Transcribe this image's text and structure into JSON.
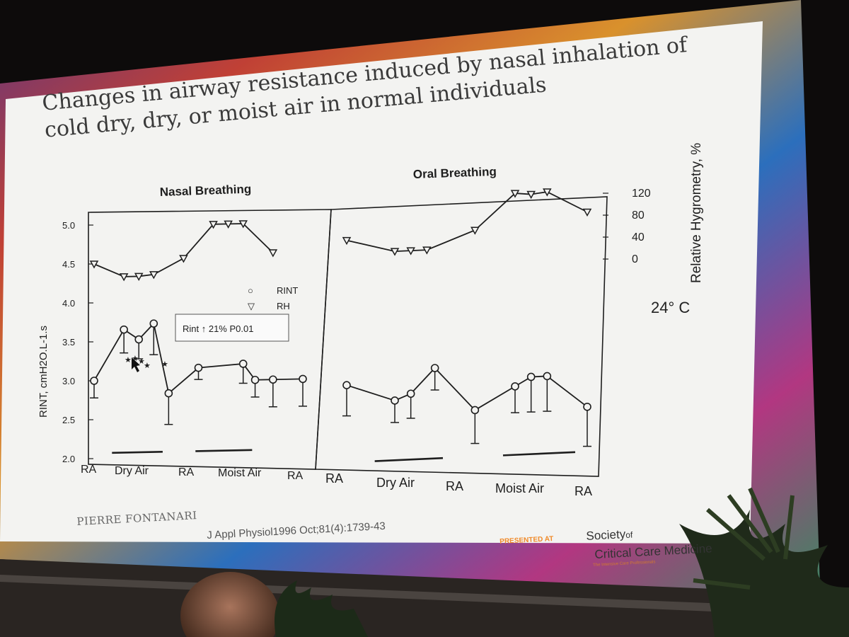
{
  "slide": {
    "title": "Changes in airway resistance induced by nasal inhalation of cold dry, dry, or moist air in normal individuals",
    "author": "PIERRE FONTANARI",
    "citation": "J Appl Physiol1996 Oct;81(4):1739-43",
    "presented_at": "PRESENTED AT",
    "society_line1": "Society",
    "society_of": "of",
    "society_line2": "Critical Care Medicine",
    "society_tagline": "The Intensive Care Professionals",
    "temperature": "24° C",
    "annotation": "Rint ↑ 21% P0.01"
  },
  "colors": {
    "slide_bg": "#f3f3f1",
    "ink": "#1e1e1e",
    "frame_gradient": [
      "#7a2d7a",
      "#e24a3a",
      "#f0a030",
      "#2f7ad0",
      "#c43c8e",
      "#3a9a6a"
    ],
    "accent_orange": "#f08a2a"
  },
  "chart_data": [
    {
      "type": "line",
      "title": "Nasal Breathing",
      "ylabel": "RINT, cmH2O.L-1.s",
      "y2label": "Relative Hygrometry, %",
      "ylim": [
        2.0,
        5.0
      ],
      "yticks": [
        "5.0",
        "4.5",
        "4.0",
        "3.5",
        "3.0",
        "2.5",
        "2.0"
      ],
      "x_labels": [
        "RA",
        "Dry Air",
        "RA",
        "Moist Air",
        "RA"
      ],
      "legend": [
        {
          "symbol": "○",
          "label": "RINT"
        },
        {
          "symbol": "▽",
          "label": "RH"
        }
      ],
      "legend_position": "top-right",
      "series": [
        {
          "name": "RINT",
          "marker": "circle",
          "x": [
            0,
            1,
            1.5,
            2,
            2.5,
            3.5,
            5,
            5.4,
            6,
            7
          ],
          "values": [
            3.0,
            3.65,
            3.52,
            3.72,
            2.82,
            3.14,
            3.18,
            2.97,
            2.97,
            2.97
          ],
          "error_low": [
            0.22,
            0.3,
            0.25,
            0.4,
            0.4,
            0.15,
            0.25,
            0.22,
            0.35,
            0.35
          ]
        },
        {
          "name": "RH",
          "marker": "triangle",
          "x": [
            0,
            1,
            1.5,
            2,
            3,
            4,
            4.5,
            5,
            6
          ],
          "values": [
            4.5,
            4.33,
            4.33,
            4.35,
            4.55,
            4.98,
            4.98,
            4.98,
            4.6
          ]
        }
      ],
      "significance_marks": [
        "★",
        "★",
        "★",
        "★",
        "★"
      ],
      "bars": [
        {
          "from": 0.6,
          "to": 2.3
        },
        {
          "from": 3.4,
          "to": 5.3
        }
      ]
    },
    {
      "type": "line",
      "title": "Oral Breathing",
      "y2lim": [
        0,
        120
      ],
      "y2ticks": [
        "120",
        "80",
        "40",
        "0"
      ],
      "x_labels": [
        "RA",
        "Dry Air",
        "RA",
        "Moist Air",
        "RA"
      ],
      "series": [
        {
          "name": "RINT",
          "marker": "circle",
          "x": [
            0,
            1.2,
            1.6,
            2.2,
            3.2,
            4.2,
            4.6,
            5.0,
            6.0
          ],
          "values": [
            2.95,
            2.75,
            2.82,
            3.1,
            2.6,
            2.85,
            2.95,
            2.95,
            2.58
          ],
          "error_low": [
            0.35,
            0.25,
            0.28,
            0.25,
            0.38,
            0.3,
            0.4,
            0.4,
            0.45
          ]
        },
        {
          "name": "RH",
          "marker": "triangle",
          "x": [
            0,
            1.2,
            1.6,
            2.0,
            3.2,
            4.2,
            4.6,
            5.0,
            6.0
          ],
          "values": [
            4.6,
            4.45,
            4.45,
            4.45,
            4.65,
            5.05,
            5.03,
            5.05,
            4.8
          ]
        }
      ],
      "bars": [
        {
          "from": 0.7,
          "to": 2.4
        },
        {
          "from": 3.9,
          "to": 5.7
        }
      ]
    }
  ]
}
